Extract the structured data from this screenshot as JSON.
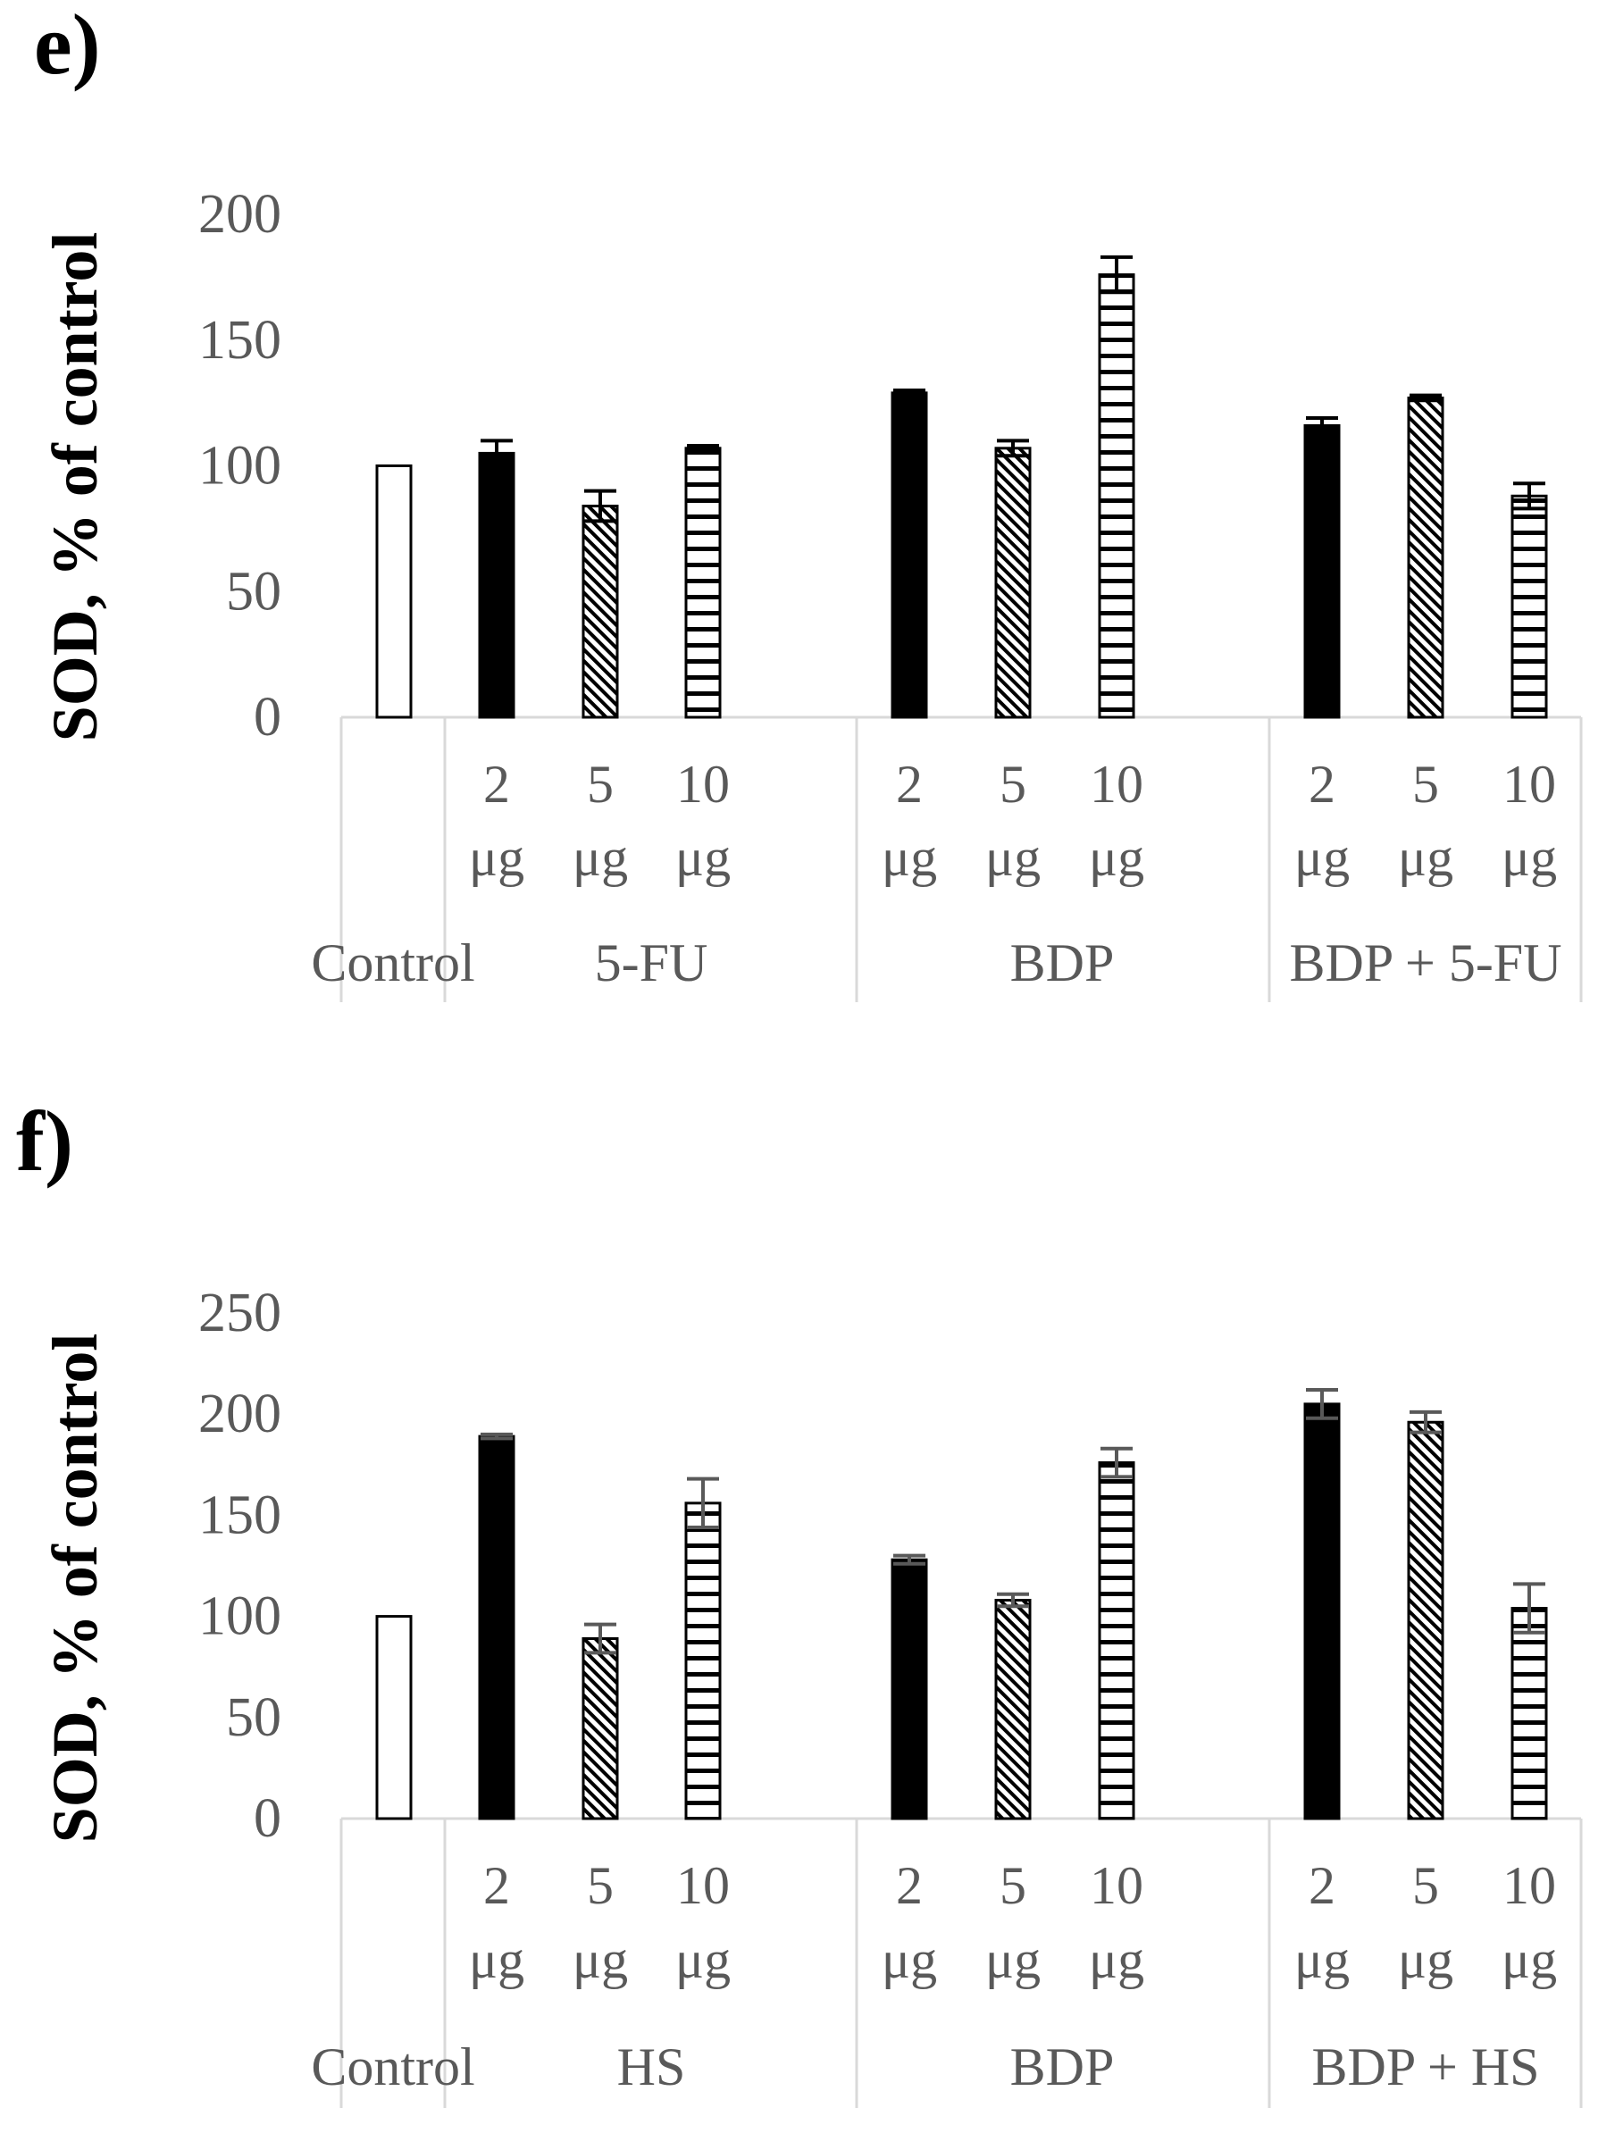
{
  "colors": {
    "bar_stroke": "#000000",
    "axis": "#d9d9d9",
    "tick_text": "#595959",
    "error_bar_e": "#000000",
    "error_bar_f": "#595959"
  },
  "chart_data": [
    {
      "type": "bar",
      "panel_label": "e)",
      "ylabel": "SOD, % of control",
      "ylim": [
        0,
        200
      ],
      "yticks": [
        "0",
        "50",
        "100",
        "150",
        "200"
      ],
      "groups": [
        {
          "label": "Control",
          "bars": [
            {
              "category": "",
              "line1": "",
              "line2": "",
              "pattern": "open",
              "value": 100,
              "error": 0
            }
          ]
        },
        {
          "label": "5-FU",
          "bars": [
            {
              "category": "2 μg",
              "line1": "2",
              "line2": "μg",
              "pattern": "solid",
              "value": 105,
              "error": 5
            },
            {
              "category": "5 μg",
              "line1": "5",
              "line2": "μg",
              "pattern": "diagonal",
              "value": 84,
              "error": 6
            },
            {
              "category": "10 μg",
              "line1": "10",
              "line2": "μg",
              "pattern": "horizontal",
              "value": 107,
              "error": 1
            }
          ]
        },
        {
          "label": "BDP",
          "bars": [
            {
              "category": "2 μg",
              "line1": "2",
              "line2": "μg",
              "pattern": "solid",
              "value": 129,
              "error": 1
            },
            {
              "category": "5 μg",
              "line1": "5",
              "line2": "μg",
              "pattern": "diagonal",
              "value": 107,
              "error": 3
            },
            {
              "category": "10 μg",
              "line1": "10",
              "line2": "μg",
              "pattern": "horizontal",
              "value": 176,
              "error": 7
            }
          ]
        },
        {
          "label": "BDP + 5-FU",
          "bars": [
            {
              "category": "2 μg",
              "line1": "2",
              "line2": "μg",
              "pattern": "solid",
              "value": 116,
              "error": 3
            },
            {
              "category": "5 μg",
              "line1": "5",
              "line2": "μg",
              "pattern": "diagonal",
              "value": 127,
              "error": 1
            },
            {
              "category": "10 μg",
              "line1": "10",
              "line2": "μg",
              "pattern": "horizontal",
              "value": 88,
              "error": 5
            }
          ]
        }
      ]
    },
    {
      "type": "bar",
      "panel_label": "f)",
      "ylabel": "SOD, % of control",
      "ylim": [
        0,
        250
      ],
      "yticks": [
        "0",
        "50",
        "100",
        "150",
        "200",
        "250"
      ],
      "groups": [
        {
          "label": "Control",
          "bars": [
            {
              "category": "",
              "line1": "",
              "line2": "",
              "pattern": "open",
              "value": 100,
              "error": 0
            }
          ]
        },
        {
          "label": "HS",
          "bars": [
            {
              "category": "2 μg",
              "line1": "2",
              "line2": "μg",
              "pattern": "solid",
              "value": 189,
              "error": 1
            },
            {
              "category": "5 μg",
              "line1": "5",
              "line2": "μg",
              "pattern": "diagonal",
              "value": 89,
              "error": 7
            },
            {
              "category": "10 μg",
              "line1": "10",
              "line2": "μg",
              "pattern": "horizontal",
              "value": 156,
              "error": 12
            }
          ]
        },
        {
          "label": "BDP",
          "bars": [
            {
              "category": "2 μg",
              "line1": "2",
              "line2": "μg",
              "pattern": "solid",
              "value": 128,
              "error": 2
            },
            {
              "category": "5 μg",
              "line1": "5",
              "line2": "μg",
              "pattern": "diagonal",
              "value": 108,
              "error": 3
            },
            {
              "category": "10 μg",
              "line1": "10",
              "line2": "μg",
              "pattern": "horizontal",
              "value": 176,
              "error": 7
            }
          ]
        },
        {
          "label": "BDP + HS",
          "bars": [
            {
              "category": "2 μg",
              "line1": "2",
              "line2": "μg",
              "pattern": "solid",
              "value": 205,
              "error": 7
            },
            {
              "category": "5 μg",
              "line1": "5",
              "line2": "μg",
              "pattern": "diagonal",
              "value": 196,
              "error": 5
            },
            {
              "category": "10 μg",
              "line1": "10",
              "line2": "μg",
              "pattern": "horizontal",
              "value": 104,
              "error": 12
            }
          ]
        }
      ]
    }
  ]
}
